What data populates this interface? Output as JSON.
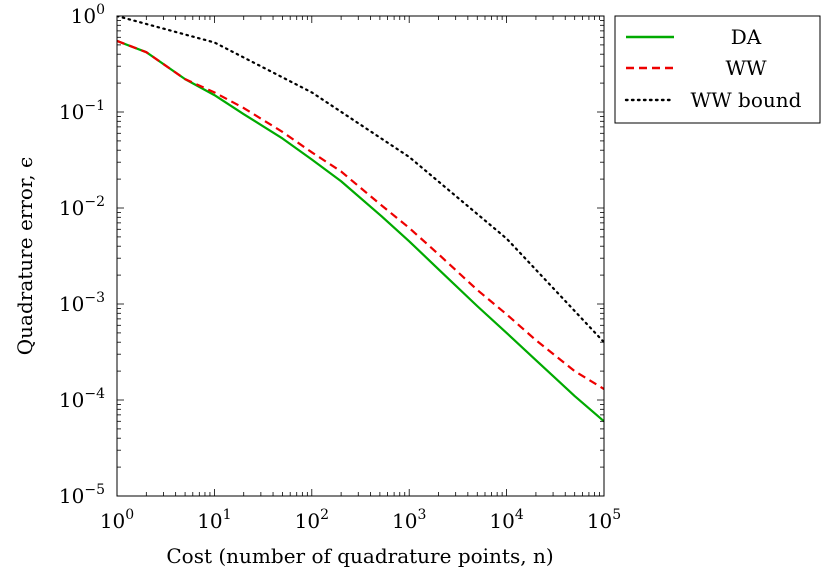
{
  "chart_data": {
    "type": "line",
    "xlabel": "Cost (number of quadrature points, n)",
    "ylabel": "Quadrature error, ϵ",
    "xscale": "log",
    "yscale": "log",
    "xlim": [
      1,
      100000
    ],
    "ylim": [
      1e-05,
      1
    ],
    "x_ticks": [
      {
        "base": "10",
        "exp": "0",
        "value": 1
      },
      {
        "base": "10",
        "exp": "1",
        "value": 10
      },
      {
        "base": "10",
        "exp": "2",
        "value": 100
      },
      {
        "base": "10",
        "exp": "3",
        "value": 1000
      },
      {
        "base": "10",
        "exp": "4",
        "value": 10000
      },
      {
        "base": "10",
        "exp": "5",
        "value": 100000
      }
    ],
    "y_ticks": [
      {
        "base": "10",
        "exp": "0",
        "value": 1
      },
      {
        "base": "10",
        "exp": "−1",
        "value": 0.1
      },
      {
        "base": "10",
        "exp": "−2",
        "value": 0.01
      },
      {
        "base": "10",
        "exp": "−3",
        "value": 0.001
      },
      {
        "base": "10",
        "exp": "−4",
        "value": 0.0001
      },
      {
        "base": "10",
        "exp": "−5",
        "value": 1e-05
      }
    ],
    "grid": false,
    "legend_position": "outside-top-right",
    "series": [
      {
        "name": "DA",
        "color": "#00aa00",
        "dash": "solid",
        "x": [
          1,
          2,
          5,
          10,
          20,
          50,
          100,
          200,
          500,
          1000,
          2000,
          5000,
          10000,
          20000,
          50000,
          100000
        ],
        "y": [
          0.55,
          0.42,
          0.22,
          0.15,
          0.095,
          0.053,
          0.032,
          0.019,
          0.0085,
          0.0045,
          0.0023,
          0.00095,
          0.0005,
          0.00026,
          0.00011,
          6e-05
        ]
      },
      {
        "name": "WW",
        "color": "#ee0000",
        "dash": "dashed",
        "x": [
          1,
          2,
          5,
          10,
          20,
          50,
          100,
          200,
          500,
          1000,
          2000,
          5000,
          10000,
          20000,
          50000,
          100000
        ],
        "y": [
          0.55,
          0.42,
          0.22,
          0.16,
          0.11,
          0.062,
          0.038,
          0.024,
          0.011,
          0.0062,
          0.0033,
          0.0014,
          0.00078,
          0.00042,
          0.0002,
          0.00013
        ]
      },
      {
        "name": "WW bound",
        "color": "#000000",
        "dash": "dotted",
        "x": [
          1,
          10,
          100,
          1000,
          10000,
          100000
        ],
        "y": [
          1.0,
          0.53,
          0.16,
          0.034,
          0.0048,
          0.0004
        ]
      }
    ]
  }
}
